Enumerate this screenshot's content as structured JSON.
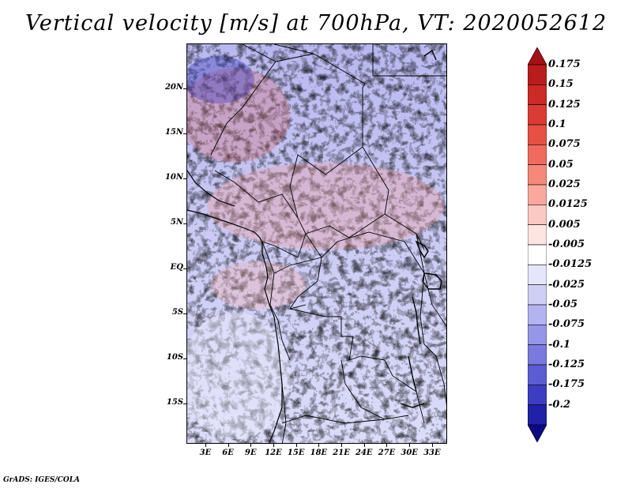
{
  "title": "Vertical velocity [m/s] at 700hPa, VT: 2020052612",
  "footer": "GrADS: IGES/COLA",
  "lat_labels": [
    "20N",
    "15N",
    "10N",
    "5N",
    "EQ",
    "5S",
    "10S",
    "15S"
  ],
  "lat_values": [
    20,
    15,
    10,
    5,
    0,
    -5,
    -10,
    -15
  ],
  "lon_labels": [
    "3E",
    "6E",
    "9E",
    "12E",
    "15E",
    "18E",
    "21E",
    "24E",
    "27E",
    "30E",
    "33E"
  ],
  "lon_values": [
    3,
    6,
    9,
    12,
    15,
    18,
    21,
    24,
    27,
    30,
    33
  ],
  "map_extent": {
    "lon_min": 0.5,
    "lon_max": 35,
    "lat_min": -19.5,
    "lat_max": 25
  },
  "colorbar": {
    "labels": [
      "0.175",
      "0.15",
      "0.125",
      "0.1",
      "0.075",
      "0.05",
      "0.025",
      "0.0125",
      "0.005",
      "-0.005",
      "-0.0125",
      "-0.025",
      "-0.05",
      "-0.075",
      "-0.1",
      "-0.125",
      "-0.175",
      "-0.2"
    ],
    "colors": [
      "#a50f15",
      "#b91c1c",
      "#cb2a26",
      "#da3b34",
      "#e65146",
      "#ef6b5e",
      "#f5877b",
      "#f9a89d",
      "#fbc9c1",
      "#fde6e1",
      "#ffffff",
      "#e6e6fb",
      "#cfcff6",
      "#b3b3ef",
      "#9696e6",
      "#7a7ade",
      "#5c5cd3",
      "#3d3dc3",
      "#2020a8",
      "#0a0a85"
    ]
  },
  "map_layers": {
    "field_name": "vertical-velocity-field",
    "coast": "coastlines",
    "borders": "country-borders"
  }
}
